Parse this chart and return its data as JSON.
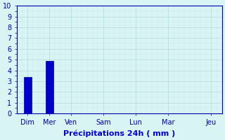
{
  "days": [
    "Dim",
    "Mer",
    "Ven",
    "Sam",
    "Lun",
    "Mar",
    "Jeu"
  ],
  "day_positions": [
    0,
    1,
    2,
    3.5,
    5,
    6.5,
    8.5
  ],
  "values": [
    3.4,
    4.9,
    0,
    0,
    0,
    0,
    0
  ],
  "bar_indices": [
    0,
    1
  ],
  "bar_color": "#0000cc",
  "bar_edge_color": "#000080",
  "background_color": "#d8f4f4",
  "grid_color_major": "#b8d8d8",
  "grid_color_minor": "#cce8e8",
  "axis_line_color": "#0000aa",
  "tick_label_color": "#3333aa",
  "xlabel": "Précipitations 24h ( mm )",
  "xlabel_color": "#0000cc",
  "ylim": [
    0,
    10
  ],
  "yticks": [
    0,
    1,
    2,
    3,
    4,
    5,
    6,
    7,
    8,
    9,
    10
  ],
  "xlabel_fontsize": 8,
  "tick_fontsize": 7,
  "bar_width": 0.35,
  "xlim": [
    -0.5,
    9.0
  ]
}
